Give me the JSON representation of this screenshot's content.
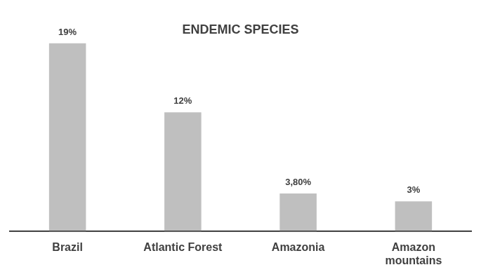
{
  "chart_data": {
    "type": "bar",
    "title": "ENDEMIC SPECIES",
    "categories": [
      "Brazil",
      "Atlantic Forest",
      "Amazonia",
      "Amazon mountains"
    ],
    "values": [
      19,
      12,
      3.8,
      3
    ],
    "value_labels": [
      "19%",
      "12%",
      "3,80%",
      "3%"
    ],
    "color": "#bfbfbf",
    "ylim": [
      0,
      19
    ],
    "grid": false,
    "data_labels": true,
    "tick_labels": "x"
  }
}
